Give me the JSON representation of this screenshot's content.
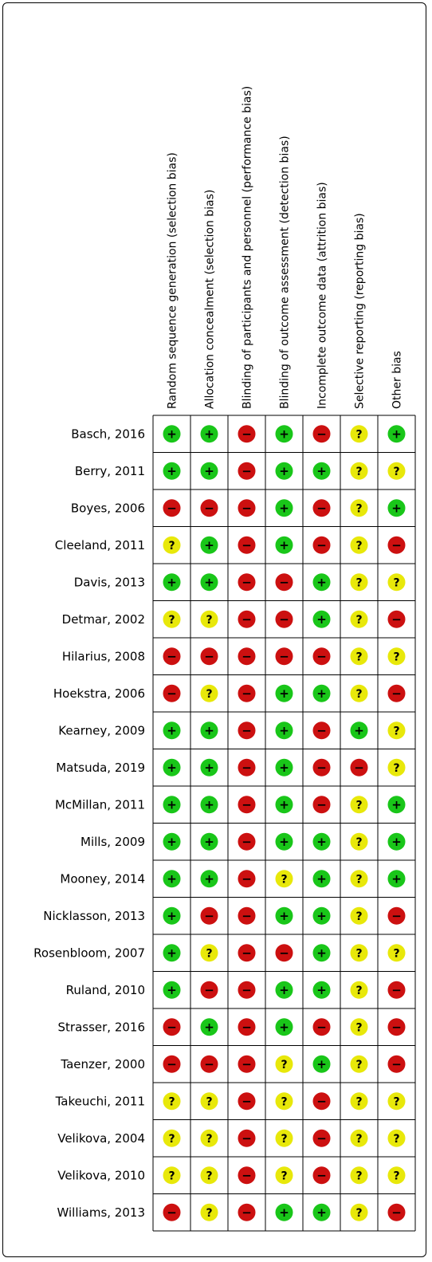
{
  "chart_data": {
    "type": "table",
    "columns": [
      "Random sequence generation (selection bias)",
      "Allocation concealment (selection bias)",
      "Blinding of participants and personnel (performance bias)",
      "Blinding of outcome assessment (detection bias)",
      "Incomplete outcome data (attrition bias)",
      "Selective reporting (reporting bias)",
      "Other bias"
    ],
    "levels": {
      "low": {
        "symbol": "+",
        "color": "#19c619"
      },
      "high": {
        "symbol": "−",
        "color": "#cc1010"
      },
      "unclear": {
        "symbol": "?",
        "color": "#e8e80a"
      }
    },
    "rows": [
      {
        "study": "Basch, 2016",
        "ratings": [
          "low",
          "low",
          "high",
          "low",
          "high",
          "unclear",
          "low"
        ]
      },
      {
        "study": "Berry, 2011",
        "ratings": [
          "low",
          "low",
          "high",
          "low",
          "low",
          "unclear",
          "unclear"
        ]
      },
      {
        "study": "Boyes, 2006",
        "ratings": [
          "high",
          "high",
          "high",
          "low",
          "high",
          "unclear",
          "low"
        ]
      },
      {
        "study": "Cleeland, 2011",
        "ratings": [
          "unclear",
          "low",
          "high",
          "low",
          "high",
          "unclear",
          "high"
        ]
      },
      {
        "study": "Davis, 2013",
        "ratings": [
          "low",
          "low",
          "high",
          "high",
          "low",
          "unclear",
          "unclear"
        ]
      },
      {
        "study": "Detmar, 2002",
        "ratings": [
          "unclear",
          "unclear",
          "high",
          "high",
          "low",
          "unclear",
          "high"
        ]
      },
      {
        "study": "Hilarius, 2008",
        "ratings": [
          "high",
          "high",
          "high",
          "high",
          "high",
          "unclear",
          "unclear"
        ]
      },
      {
        "study": "Hoekstra, 2006",
        "ratings": [
          "high",
          "unclear",
          "high",
          "low",
          "low",
          "unclear",
          "high"
        ]
      },
      {
        "study": "Kearney, 2009",
        "ratings": [
          "low",
          "low",
          "high",
          "low",
          "high",
          "low",
          "unclear"
        ]
      },
      {
        "study": "Matsuda, 2019",
        "ratings": [
          "low",
          "low",
          "high",
          "low",
          "high",
          "high",
          "unclear"
        ]
      },
      {
        "study": "McMillan, 2011",
        "ratings": [
          "low",
          "low",
          "high",
          "low",
          "high",
          "unclear",
          "low"
        ]
      },
      {
        "study": "Mills, 2009",
        "ratings": [
          "low",
          "low",
          "high",
          "low",
          "low",
          "unclear",
          "low"
        ]
      },
      {
        "study": "Mooney, 2014",
        "ratings": [
          "low",
          "low",
          "high",
          "unclear",
          "low",
          "unclear",
          "low"
        ]
      },
      {
        "study": "Nicklasson, 2013",
        "ratings": [
          "low",
          "high",
          "high",
          "low",
          "low",
          "unclear",
          "high"
        ]
      },
      {
        "study": "Rosenbloom, 2007",
        "ratings": [
          "low",
          "unclear",
          "high",
          "high",
          "low",
          "unclear",
          "unclear"
        ]
      },
      {
        "study": "Ruland, 2010",
        "ratings": [
          "low",
          "high",
          "high",
          "low",
          "low",
          "unclear",
          "high"
        ]
      },
      {
        "study": "Strasser, 2016",
        "ratings": [
          "high",
          "low",
          "high",
          "low",
          "high",
          "unclear",
          "high"
        ]
      },
      {
        "study": "Taenzer, 2000",
        "ratings": [
          "high",
          "high",
          "high",
          "unclear",
          "low",
          "unclear",
          "high"
        ]
      },
      {
        "study": "Takeuchi, 2011",
        "ratings": [
          "unclear",
          "unclear",
          "high",
          "unclear",
          "high",
          "unclear",
          "unclear"
        ]
      },
      {
        "study": "Velikova, 2004",
        "ratings": [
          "unclear",
          "unclear",
          "high",
          "unclear",
          "high",
          "unclear",
          "unclear"
        ]
      },
      {
        "study": "Velikova, 2010",
        "ratings": [
          "unclear",
          "unclear",
          "high",
          "unclear",
          "high",
          "unclear",
          "unclear"
        ]
      },
      {
        "study": "Williams, 2013",
        "ratings": [
          "high",
          "unclear",
          "high",
          "low",
          "low",
          "unclear",
          "high"
        ]
      }
    ]
  }
}
